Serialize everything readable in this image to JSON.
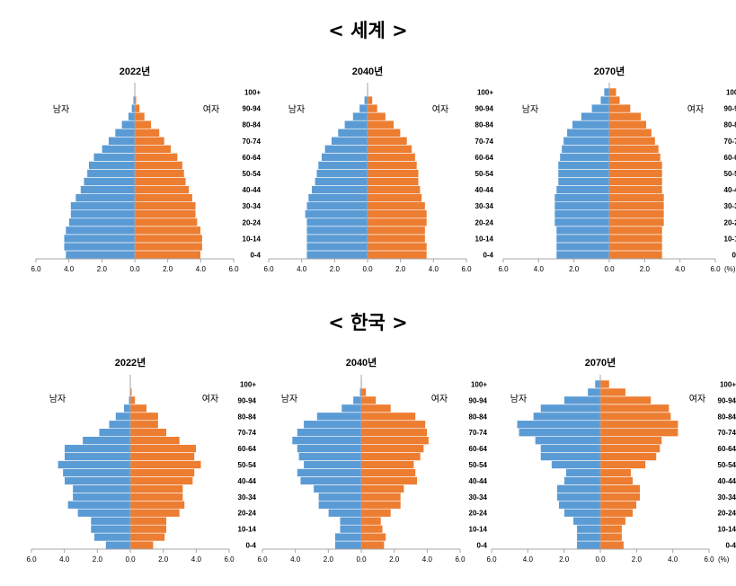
{
  "sections": [
    {
      "title": "< 세계 >"
    },
    {
      "title": "< 한국 >"
    }
  ],
  "unit_label": "(%)",
  "colors": {
    "male": "#5B9BD5",
    "female": "#ED7D31",
    "axis": "#A6A6A6"
  },
  "chart_data": [
    {
      "type": "bar",
      "section": "세계",
      "title": "2022년",
      "male_label": "남자",
      "female_label": "여자",
      "categories": [
        "0-4",
        "5-9",
        "10-14",
        "15-19",
        "20-24",
        "25-29",
        "30-34",
        "35-39",
        "40-44",
        "45-49",
        "50-54",
        "55-59",
        "60-64",
        "65-69",
        "70-74",
        "75-79",
        "80-84",
        "85-89",
        "90-94",
        "95-99",
        "100+"
      ],
      "tick_labels": [
        "0-4",
        "10-14",
        "20-24",
        "30-34",
        "40-44",
        "50-54",
        "60-64",
        "70-74",
        "80-84",
        "90-94",
        "100+"
      ],
      "xticks": [
        "6.0",
        "4.0",
        "2.0",
        "0.0",
        "2.0",
        "4.0",
        "6.0"
      ],
      "xlim": [
        -6,
        6
      ],
      "show_unit": false,
      "series": [
        {
          "name": "남자",
          "values": [
            4.2,
            4.3,
            4.3,
            4.2,
            4.0,
            3.9,
            3.9,
            3.6,
            3.3,
            3.1,
            2.9,
            2.8,
            2.5,
            2.0,
            1.6,
            1.2,
            0.8,
            0.4,
            0.2,
            0.1,
            0.02
          ]
        },
        {
          "name": "여자",
          "values": [
            4.0,
            4.1,
            4.1,
            4.0,
            3.8,
            3.7,
            3.7,
            3.5,
            3.3,
            3.1,
            3.0,
            2.9,
            2.6,
            2.2,
            1.8,
            1.5,
            1.0,
            0.6,
            0.3,
            0.1,
            0.02
          ]
        }
      ]
    },
    {
      "type": "bar",
      "section": "세계",
      "title": "2040년",
      "male_label": "남자",
      "female_label": "여자",
      "categories": [
        "0-4",
        "5-9",
        "10-14",
        "15-19",
        "20-24",
        "25-29",
        "30-34",
        "35-39",
        "40-44",
        "45-49",
        "50-54",
        "55-59",
        "60-64",
        "65-69",
        "70-74",
        "75-79",
        "80-84",
        "85-89",
        "90-94",
        "95-99",
        "100+"
      ],
      "tick_labels": [
        "0-4",
        "10-14",
        "20-24",
        "30-34",
        "40-44",
        "50-54",
        "60-64",
        "70-74",
        "80-84",
        "90-94",
        "100+"
      ],
      "xticks": [
        "6.0",
        "4.0",
        "2.0",
        "0.0",
        "2.0",
        "4.0",
        "6.0"
      ],
      "xlim": [
        -6,
        6
      ],
      "show_unit": false,
      "series": [
        {
          "name": "남자",
          "values": [
            3.7,
            3.7,
            3.7,
            3.7,
            3.7,
            3.8,
            3.7,
            3.6,
            3.4,
            3.2,
            3.1,
            3.0,
            2.8,
            2.6,
            2.2,
            1.8,
            1.4,
            0.9,
            0.5,
            0.2,
            0.03
          ]
        },
        {
          "name": "여자",
          "values": [
            3.6,
            3.6,
            3.5,
            3.5,
            3.6,
            3.6,
            3.5,
            3.3,
            3.2,
            3.1,
            3.1,
            3.0,
            2.9,
            2.7,
            2.4,
            2.0,
            1.6,
            1.1,
            0.6,
            0.3,
            0.05
          ]
        }
      ]
    },
    {
      "type": "bar",
      "section": "세계",
      "title": "2070년",
      "male_label": "남자",
      "female_label": "여자",
      "categories": [
        "0-4",
        "5-9",
        "10-14",
        "15-19",
        "20-24",
        "25-29",
        "30-34",
        "35-39",
        "40-44",
        "45-49",
        "50-54",
        "55-59",
        "60-64",
        "65-69",
        "70-74",
        "75-79",
        "80-84",
        "85-89",
        "90-94",
        "95-99",
        "100+"
      ],
      "tick_labels": [
        "0-4",
        "10-14",
        "20-24",
        "30-34",
        "40-44",
        "50-54",
        "60-64",
        "70-74",
        "80-84",
        "90-94",
        "100+"
      ],
      "xticks": [
        "6.0",
        "4.0",
        "2.0",
        "0.0",
        "2.0",
        "4.0",
        "6.0"
      ],
      "xlim": [
        -6,
        6
      ],
      "show_unit": true,
      "series": [
        {
          "name": "남자",
          "values": [
            3.0,
            3.0,
            3.0,
            3.0,
            3.1,
            3.1,
            3.1,
            3.1,
            3.0,
            2.9,
            2.9,
            2.9,
            2.8,
            2.7,
            2.6,
            2.4,
            2.1,
            1.6,
            1.0,
            0.5,
            0.3
          ]
        },
        {
          "name": "여자",
          "values": [
            3.0,
            3.0,
            3.0,
            3.0,
            3.1,
            3.1,
            3.1,
            3.1,
            3.0,
            3.0,
            3.0,
            3.0,
            2.9,
            2.8,
            2.6,
            2.4,
            2.1,
            1.8,
            1.2,
            0.6,
            0.4
          ]
        }
      ]
    },
    {
      "type": "bar",
      "section": "한국",
      "title": "2022년",
      "male_label": "남자",
      "female_label": "여자",
      "categories": [
        "0-4",
        "5-9",
        "10-14",
        "15-19",
        "20-24",
        "25-29",
        "30-34",
        "35-39",
        "40-44",
        "45-49",
        "50-54",
        "55-59",
        "60-64",
        "65-69",
        "70-74",
        "75-79",
        "80-84",
        "85-89",
        "90-94",
        "95-99",
        "100+"
      ],
      "tick_labels": [
        "0-4",
        "10-14",
        "20-24",
        "30-34",
        "40-44",
        "50-54",
        "60-64",
        "70-74",
        "80-84",
        "90-94",
        "100+"
      ],
      "xticks": [
        "6.0",
        "4.0",
        "2.0",
        "0.0",
        "2.0",
        "4.0",
        "6.0"
      ],
      "xlim": [
        -6,
        6
      ],
      "show_unit": false,
      "series": [
        {
          "name": "남자",
          "values": [
            1.5,
            2.2,
            2.4,
            2.4,
            3.2,
            3.8,
            3.5,
            3.5,
            4.0,
            4.1,
            4.4,
            4.0,
            4.0,
            2.9,
            1.9,
            1.3,
            0.9,
            0.4,
            0.1,
            0.03,
            0.01
          ]
        },
        {
          "name": "여자",
          "values": [
            1.4,
            2.1,
            2.2,
            2.2,
            3.0,
            3.3,
            3.2,
            3.2,
            3.8,
            3.9,
            4.3,
            3.9,
            4.0,
            3.0,
            2.2,
            1.7,
            1.7,
            1.0,
            0.3,
            0.1,
            0.02
          ]
        }
      ]
    },
    {
      "type": "bar",
      "section": "한국",
      "title": "2040년",
      "male_label": "남자",
      "female_label": "여자",
      "categories": [
        "0-4",
        "5-9",
        "10-14",
        "15-19",
        "20-24",
        "25-29",
        "30-34",
        "35-39",
        "40-44",
        "45-49",
        "50-54",
        "55-59",
        "60-64",
        "65-69",
        "70-74",
        "75-79",
        "80-84",
        "85-89",
        "90-94",
        "95-99",
        "100+"
      ],
      "tick_labels": [
        "0-4",
        "10-14",
        "20-24",
        "30-34",
        "40-44",
        "50-54",
        "60-64",
        "70-74",
        "80-84",
        "90-94",
        "100+"
      ],
      "xticks": [
        "6.0",
        "4.0",
        "2.0",
        "0.0",
        "2.0",
        "4.0",
        "6.0"
      ],
      "xlim": [
        -6,
        6
      ],
      "show_unit": false,
      "series": [
        {
          "name": "남자",
          "values": [
            1.6,
            1.6,
            1.3,
            1.3,
            2.0,
            2.6,
            2.6,
            2.9,
            3.7,
            3.9,
            3.5,
            3.8,
            3.9,
            4.2,
            3.9,
            3.5,
            2.7,
            1.2,
            0.5,
            0.1,
            0.02
          ]
        },
        {
          "name": "여자",
          "values": [
            1.4,
            1.5,
            1.3,
            1.2,
            1.8,
            2.4,
            2.4,
            2.6,
            3.4,
            3.3,
            3.2,
            3.6,
            3.8,
            4.1,
            4.0,
            3.9,
            3.3,
            1.8,
            0.9,
            0.3,
            0.05
          ]
        }
      ]
    },
    {
      "type": "bar",
      "section": "한국",
      "title": "2070년",
      "male_label": "남자",
      "female_label": "여자",
      "categories": [
        "0-4",
        "5-9",
        "10-14",
        "15-19",
        "20-24",
        "25-29",
        "30-34",
        "35-39",
        "40-44",
        "45-49",
        "50-54",
        "55-59",
        "60-64",
        "65-69",
        "70-74",
        "75-79",
        "80-84",
        "85-89",
        "90-94",
        "95-99",
        "100+"
      ],
      "tick_labels": [
        "0-4",
        "10-14",
        "20-24",
        "30-34",
        "40-44",
        "50-54",
        "60-64",
        "70-74",
        "80-84",
        "90-94",
        "100+"
      ],
      "xticks": [
        "6.0",
        "4.0",
        "2.0",
        "0.0",
        "2.0",
        "4.0",
        "6.0"
      ],
      "xlim": [
        -6,
        6
      ],
      "show_unit": true,
      "series": [
        {
          "name": "남자",
          "values": [
            1.3,
            1.3,
            1.3,
            1.5,
            2.0,
            2.3,
            2.4,
            2.4,
            2.0,
            1.9,
            2.7,
            3.3,
            3.3,
            3.6,
            4.5,
            4.6,
            3.7,
            3.3,
            2.0,
            0.7,
            0.3
          ]
        },
        {
          "name": "여자",
          "values": [
            1.3,
            1.2,
            1.2,
            1.4,
            1.8,
            2.0,
            2.2,
            2.2,
            1.8,
            1.7,
            2.5,
            3.1,
            3.3,
            3.4,
            4.3,
            4.3,
            3.9,
            3.8,
            2.8,
            1.4,
            0.5
          ]
        }
      ]
    }
  ]
}
